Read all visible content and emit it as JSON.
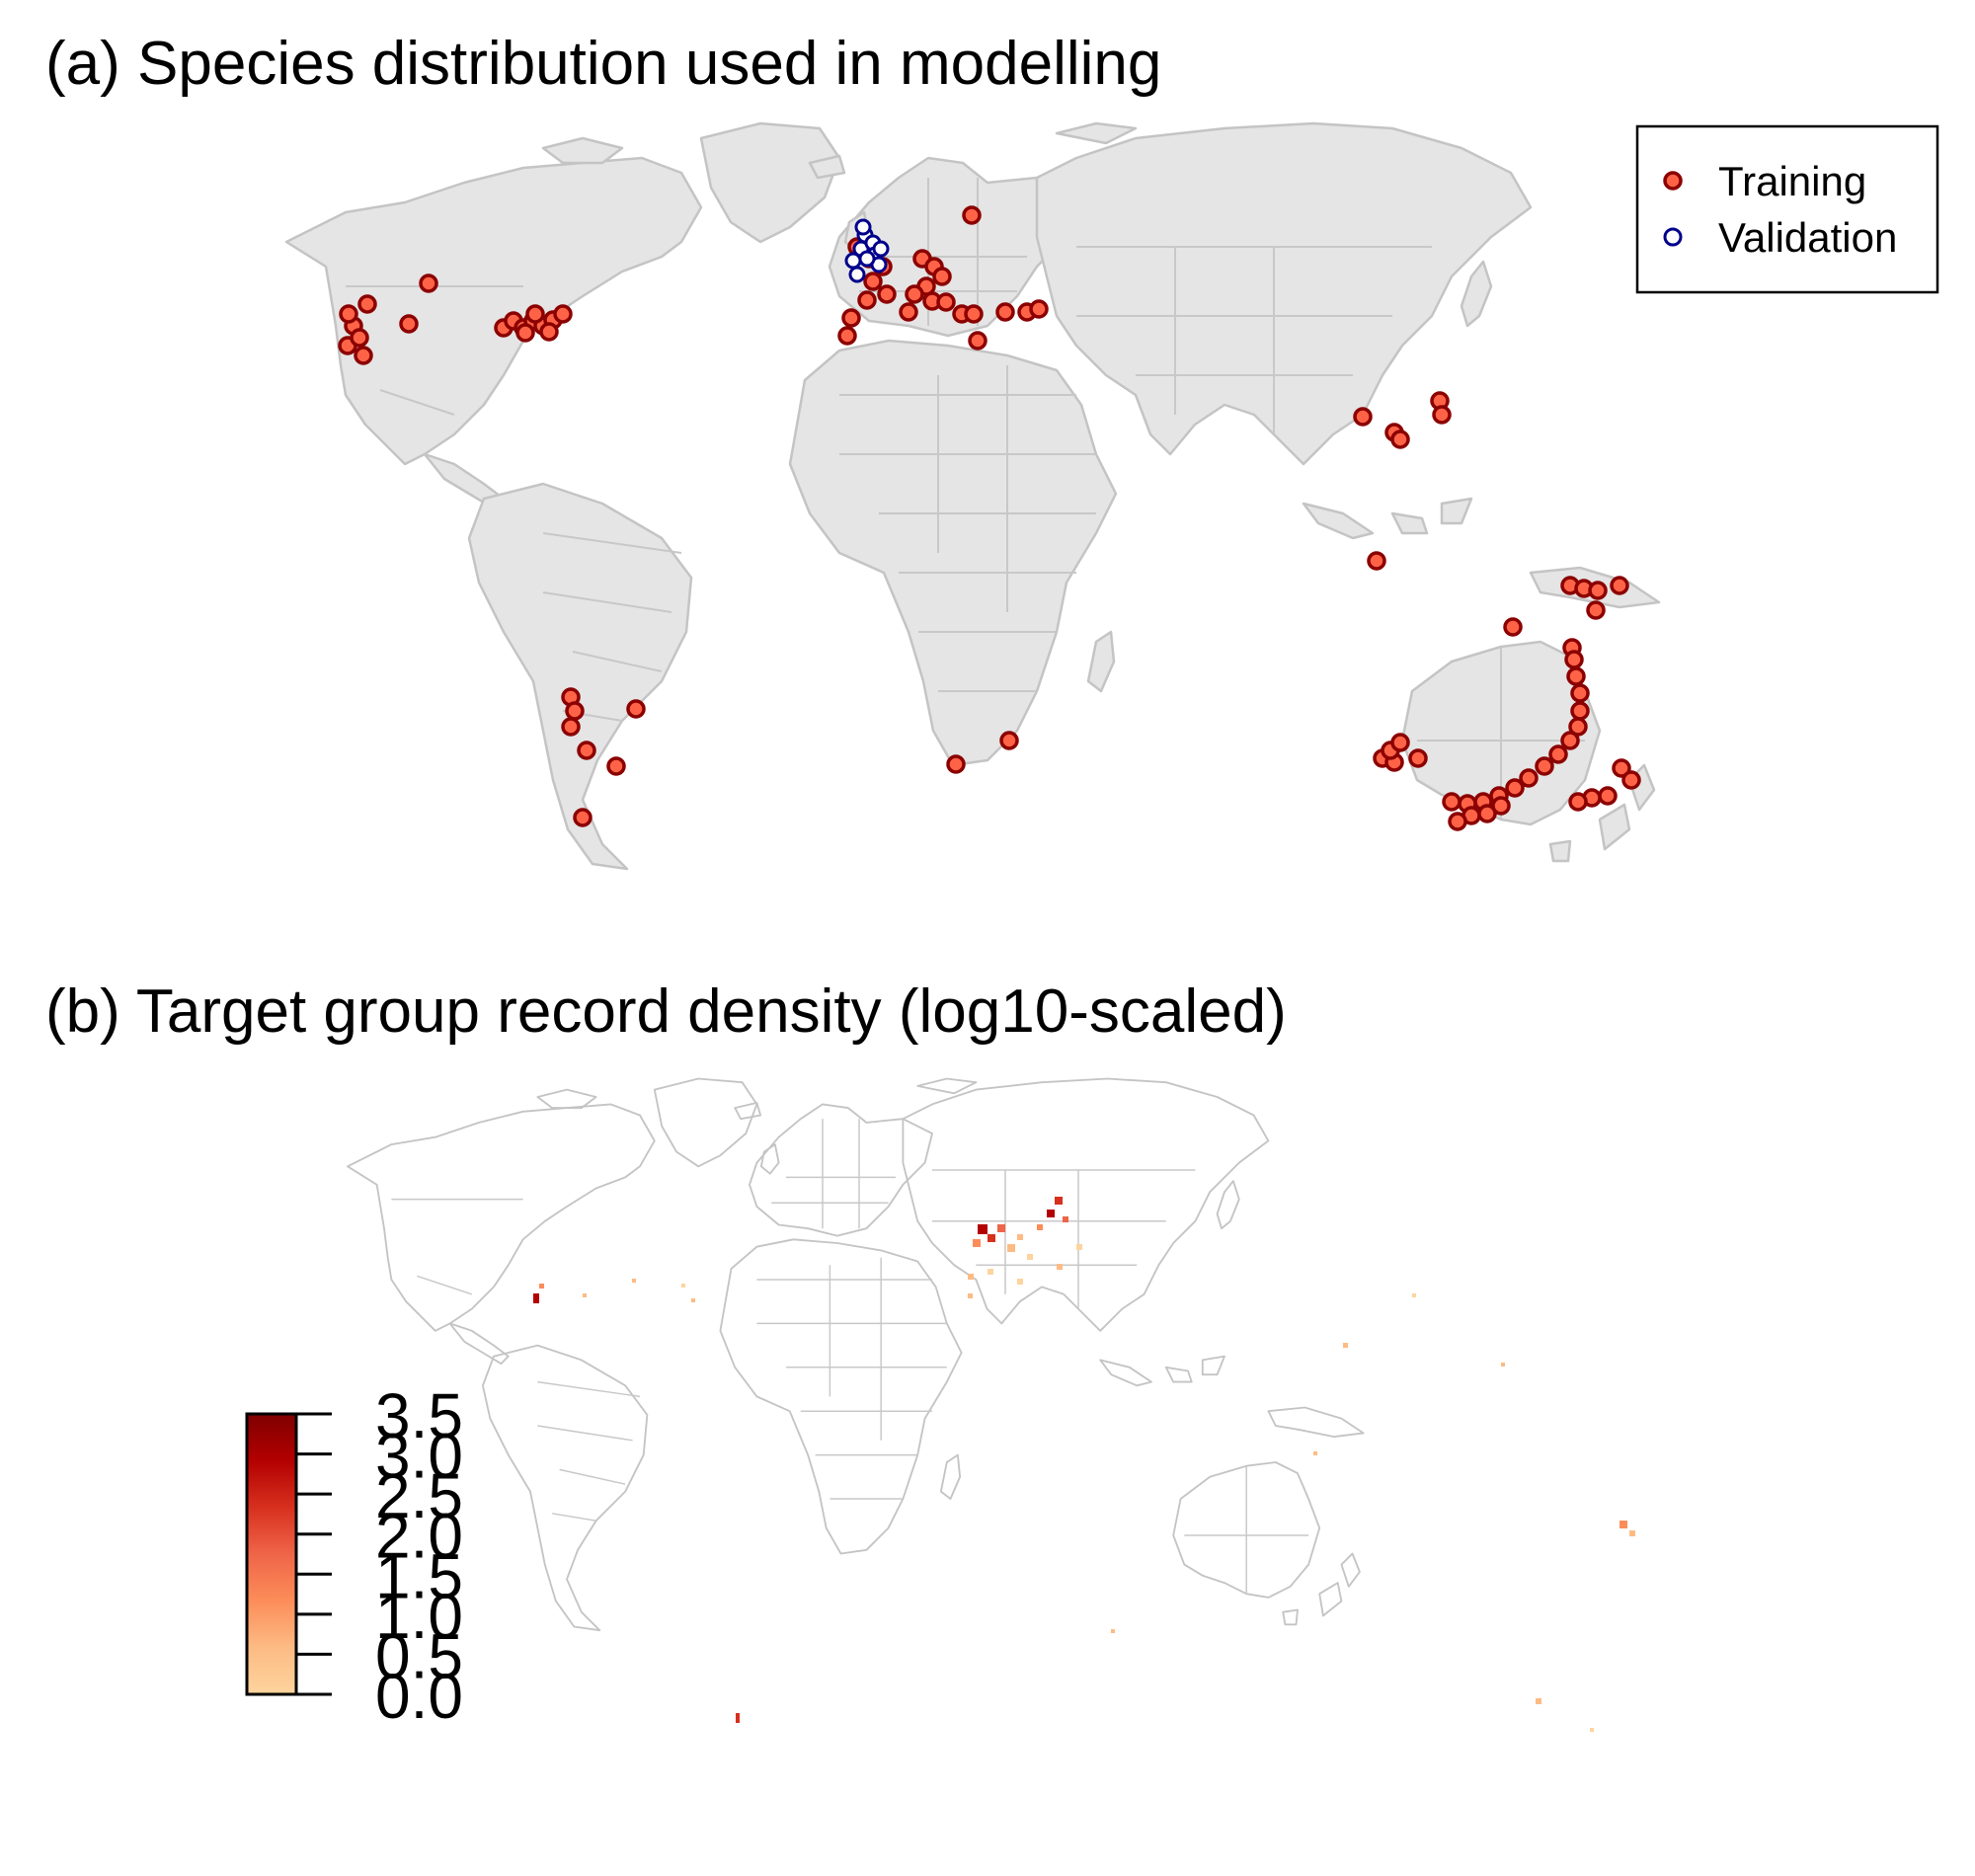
{
  "panel_a": {
    "title": "(a) Species distribution used in modelling",
    "legend": {
      "items": [
        {
          "label": "Training",
          "fill": "#ff6347",
          "stroke": "#8b0000"
        },
        {
          "label": "Validation",
          "fill": "#ffffff",
          "stroke": "#00008b"
        }
      ]
    }
  },
  "panel_b": {
    "title": "(b) Target group record density (log10-scaled)",
    "colorbar": {
      "ticks": [
        "0.0",
        "0.5",
        "1.0",
        "1.5",
        "2.0",
        "2.5",
        "3.0",
        "3.5"
      ],
      "min": 0.0,
      "max": 3.5,
      "colors": [
        "#fdd49e",
        "#fdbb84",
        "#fc8d59",
        "#ef6548",
        "#d7301f",
        "#b30000",
        "#7f0000"
      ]
    }
  },
  "colors": {
    "land_fill": "#e5e5e5",
    "land_border": "#c4c4c4"
  }
}
